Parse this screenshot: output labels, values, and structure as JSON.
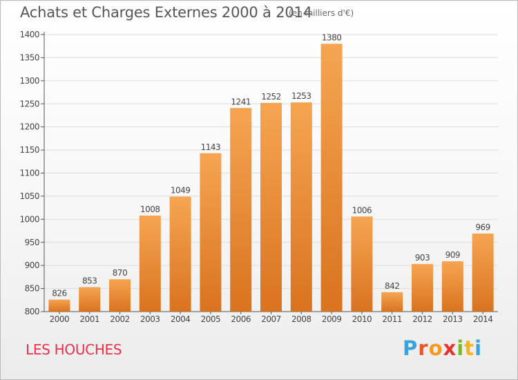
{
  "title": "Achats et Charges Externes 2000 à 2014",
  "subtitle": "(en milliers d'€)",
  "commune": "LES HOUCHES",
  "logo": {
    "p": "P",
    "r": "r",
    "o": "o",
    "x": "x",
    "i1": "i",
    "t": "t",
    "i2": "i"
  },
  "colors": {
    "bar_top": "#f5a552",
    "bar_bottom": "#d9731f",
    "title": "#555555",
    "commune": "#ee2f4b",
    "grid": "#dcdcdc"
  },
  "chart_data": {
    "type": "bar",
    "categories": [
      "2000",
      "2001",
      "2002",
      "2003",
      "2004",
      "2005",
      "2006",
      "2007",
      "2008",
      "2009",
      "2010",
      "2011",
      "2012",
      "2013",
      "2014"
    ],
    "values": [
      826,
      853,
      870,
      1008,
      1049,
      1143,
      1241,
      1252,
      1253,
      1380,
      1006,
      842,
      903,
      909,
      969
    ],
    "ylim": [
      800,
      1400
    ],
    "yticks": [
      800,
      850,
      900,
      950,
      1000,
      1050,
      1100,
      1150,
      1200,
      1250,
      1300,
      1350,
      1400
    ],
    "grid": true,
    "data_labels": true
  }
}
